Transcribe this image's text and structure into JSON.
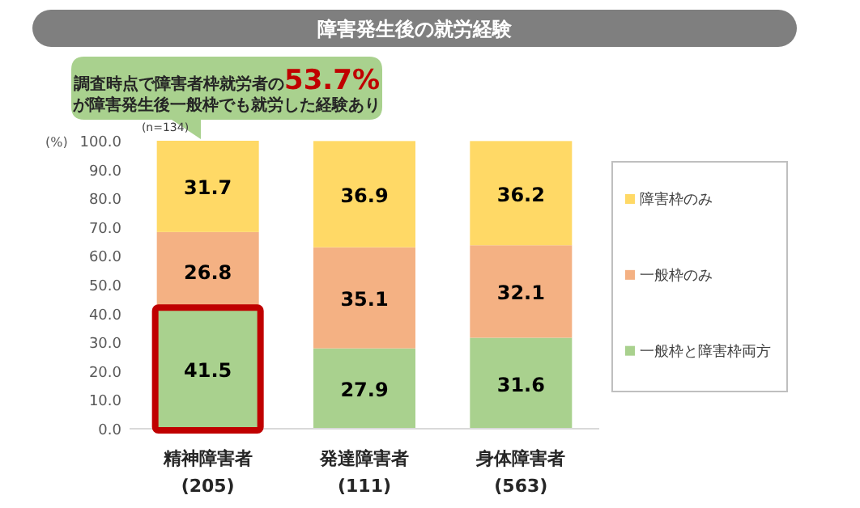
{
  "chart_data": {
    "type": "bar",
    "stacked": true,
    "title": "障害発生後の就労経験",
    "ylabel": "(%)",
    "categories": [
      "精神障害者 (205)",
      "発達障害者 (111)",
      "身体障害者 (563)"
    ],
    "series": [
      {
        "name": "一般枠と障害枠両方",
        "color": "#a9d18e",
        "values": [
          41.5,
          27.9,
          31.6
        ]
      },
      {
        "name": "一般枠のみ",
        "color": "#f4b183",
        "values": [
          26.8,
          35.1,
          32.1
        ]
      },
      {
        "name": "障害枠のみ",
        "color": "#ffd966",
        "values": [
          31.7,
          36.9,
          36.2
        ]
      }
    ],
    "ylim": [
      0,
      100
    ],
    "yticks": [
      {
        "value": 0,
        "label": "0.0"
      },
      {
        "value": 10,
        "label": "10.0"
      },
      {
        "value": 20,
        "label": "20.0"
      },
      {
        "value": 30,
        "label": "30.0"
      },
      {
        "value": 40,
        "label": "40.0"
      },
      {
        "value": 50,
        "label": "50.0"
      },
      {
        "value": 60,
        "label": "60.0"
      },
      {
        "value": 70,
        "label": "70.0"
      },
      {
        "value": 80,
        "label": "80.0"
      },
      {
        "value": 90,
        "label": "90.0"
      },
      {
        "value": 100,
        "label": "100.0"
      }
    ],
    "data_labels": true,
    "legend": "right",
    "grid": false,
    "annotations": [
      "調査時点で障害者枠就労者の**53.7%**",
      "が障害発生後一般枠でも就労した経験あり",
      "(n=134)"
    ]
  }
}
